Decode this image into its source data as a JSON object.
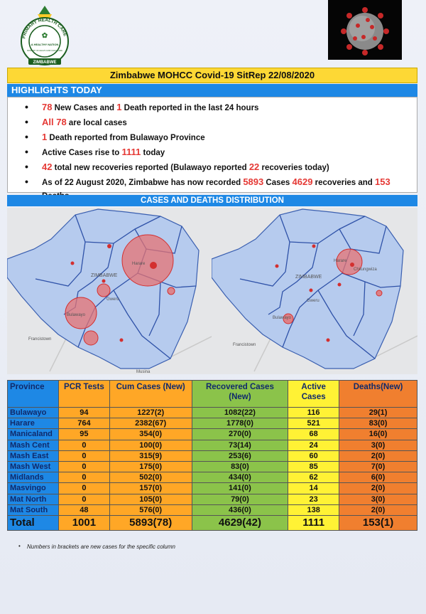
{
  "logo": {
    "text_top": "PRIMARY HEALTH CARE",
    "text_mid": "A HEALTHY NATION",
    "text_inner": "MINISTRY OF HEALTH AND CHILD CARE",
    "text_bottom": "ZIMBABWE"
  },
  "title": "Zimbabwe MOHCC Covid-19 SitRep 22/08/2020",
  "highlights_heading": "HIGHLIGHTS TODAY",
  "highlights": [
    {
      "parts": [
        {
          "t": "78",
          "red": true
        },
        {
          "t": " New Cases and "
        },
        {
          "t": "1",
          "red": true
        },
        {
          "t": " Death reported in the last 24 hours"
        }
      ]
    },
    {
      "parts": [
        {
          "t": "All 78",
          "red": true
        },
        {
          "t": " are local cases"
        }
      ]
    },
    {
      "parts": [
        {
          "t": "1",
          "red": true
        },
        {
          "t": " Death reported from Bulawayo Province"
        }
      ]
    },
    {
      "parts": [
        {
          "t": "Active Cases rise to "
        },
        {
          "t": "1111",
          "red": true
        },
        {
          "t": " today"
        }
      ]
    },
    {
      "parts": [
        {
          "t": "42",
          "red": true
        },
        {
          "t": " total new recoveries reported (Bulawayo reported "
        },
        {
          "t": "22",
          "red": true
        },
        {
          "t": " recoveries today)"
        }
      ]
    },
    {
      "parts": [
        {
          "t": "As of 22 August 2020, Zimbabwe has now recorded "
        },
        {
          "t": "5893",
          "red": true
        },
        {
          "t": " Cases "
        },
        {
          "t": "4629",
          "red": true
        },
        {
          "t": " recoveries and "
        },
        {
          "t": "153",
          "red": true
        },
        {
          "t": " Deaths."
        }
      ]
    }
  ],
  "distribution_heading": "CASES AND DEATHS DISTRIBUTION",
  "maps": {
    "map1_labels": {
      "harare": "Harare",
      "zimbabwe": "ZIMBABWE",
      "gweru": "Gweru",
      "bulawayo": "Bulawayo",
      "francistown": "Francistown",
      "musina": "Musina"
    },
    "map2_labels": {
      "harare": "Harare",
      "chitungwiza": "Chitungwiza",
      "zimbabwe": "ZIMBABWE",
      "gweru": "Gweru",
      "bulawayo": "Bulawayo",
      "francistown": "Francistown"
    }
  },
  "table": {
    "headers": [
      "Province",
      "PCR Tests",
      "Cum Cases (New)",
      "Recovered Cases (New)",
      "Active Cases",
      "Deaths(New)"
    ],
    "rows": [
      [
        "Bulawayo",
        "94",
        "1227(2)",
        "1082(22)",
        "116",
        "29(1)"
      ],
      [
        "Harare",
        "764",
        "2382(67)",
        "1778(0)",
        "521",
        "83(0)"
      ],
      [
        "Manicaland",
        "95",
        "354(0)",
        "270(0)",
        "68",
        "16(0)"
      ],
      [
        "Mash Cent",
        "0",
        "100(0)",
        "73(14)",
        "24",
        "3(0)"
      ],
      [
        "Mash East",
        "0",
        "315(9)",
        "253(6)",
        "60",
        "2(0)"
      ],
      [
        "Mash West",
        "0",
        "175(0)",
        "83(0)",
        "85",
        "7(0)"
      ],
      [
        "Midlands",
        "0",
        "502(0)",
        "434(0)",
        "62",
        "6(0)"
      ],
      [
        "Masvingo",
        "0",
        "157(0)",
        "141(0)",
        "14",
        "2(0)"
      ],
      [
        "Mat North",
        "0",
        "105(0)",
        "79(0)",
        "23",
        "3(0)"
      ],
      [
        "Mat South",
        "48",
        "576(0)",
        "436(0)",
        "138",
        "2(0)"
      ]
    ],
    "total": [
      "Total",
      "1001",
      "5893(78)",
      "4629(42)",
      "1111",
      "153(1)"
    ]
  },
  "footnote": "Numbers in brackets are new cases for the specific column",
  "colors": {
    "title_bg": "#fdd835",
    "heading_bg": "#1e88e5",
    "highlight_red": "#e53935",
    "pcr": "#ffa726",
    "recovered": "#8bc34a",
    "active": "#fff235",
    "deaths": "#f07f2f"
  }
}
